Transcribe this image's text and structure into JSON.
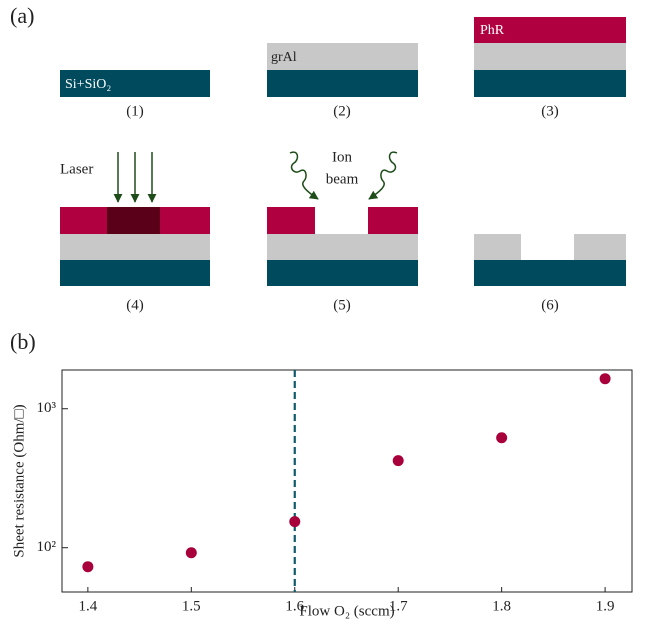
{
  "diagram": {
    "panel_label": "(a)",
    "layers": {
      "substrate": "Si+SiO₂",
      "film": "grAl",
      "resist": "PhR"
    },
    "annotations": {
      "laser": "Laser",
      "ion_1": "Ion",
      "ion_2": "beam"
    },
    "steps": [
      "(1)",
      "(2)",
      "(3)",
      "(4)",
      "(5)",
      "(6)"
    ]
  },
  "chart_data": {
    "type": "scatter",
    "panel_label": "(b)",
    "xlabel": "Flow O₂ (sccm)",
    "ylabel": "Sheet resistance (Ohm/□)",
    "x": [
      1.4,
      1.5,
      1.6,
      1.7,
      1.8,
      1.9
    ],
    "values": [
      73,
      92,
      154,
      423,
      618,
      1645
    ],
    "color": "#a8003a",
    "xlim": [
      1.375,
      1.926
    ],
    "xticks": [
      1.4,
      1.5,
      1.6,
      1.7,
      1.8,
      1.9
    ],
    "ylim": [
      48,
      1900
    ],
    "log_y": true,
    "yticks": [
      {
        "value": 100,
        "label": "10²"
      },
      {
        "value": 1000,
        "label": "10³"
      }
    ],
    "vline": 1.6,
    "vline_color": "#0f5a6b"
  }
}
